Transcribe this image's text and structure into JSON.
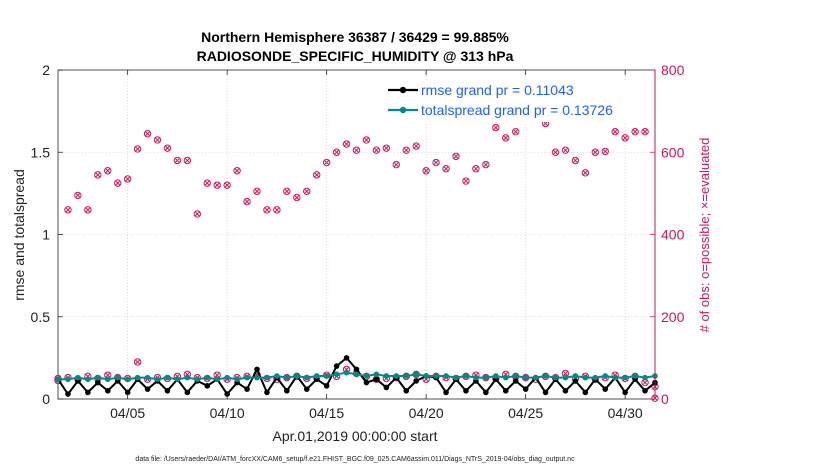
{
  "chart_data": {
    "type": "line",
    "title_line1": "Northern Hemisphere 36387 / 36429 = 99.885%",
    "title_line2": "RADIOSONDE_SPECIFIC_HUMIDITY @ 313 hPa",
    "xlabel": "Apr.01,2019 00:00:00 start",
    "ylabel_left": "rmse and totalspread",
    "ylabel_right": "# of obs: o=possible; ×=evaluated",
    "footnote": "data file: /Users/raeder/DAI/ATM_forcXX/CAM6_setup/f.e21.FHIST_BGC.f09_025.CAM6assim.011/Diags_NTrS_2019-04/obs_diag_output.nc",
    "xlim": [
      0.5,
      30.5
    ],
    "x_ticks": [
      4,
      9,
      14,
      19,
      24,
      29
    ],
    "x_tick_labels": [
      "04/05",
      "04/10",
      "04/15",
      "04/20",
      "04/25",
      "04/30"
    ],
    "ylim_left": [
      0,
      2
    ],
    "y_ticks_left": [
      0,
      0.5,
      1,
      1.5,
      2
    ],
    "y_tick_labels_left": [
      "0",
      "0.5",
      "1",
      "1.5",
      "2"
    ],
    "ylim_right": [
      0,
      800
    ],
    "y_ticks_right": [
      0,
      200,
      400,
      600,
      800
    ],
    "y_tick_labels_right": [
      "0",
      "200",
      "400",
      "600",
      "800"
    ],
    "legend": [
      {
        "label": "rmse grand pr = 0.11043",
        "color": "#000000"
      },
      {
        "label": "totalspread grand pr = 0.13726",
        "color": "#008b8b"
      }
    ],
    "legend_position": "top-right",
    "obs_counts": {
      "name": "# of obs",
      "color": "#d4145a",
      "x": [
        0.5,
        1.0,
        1.5,
        2.0,
        2.5,
        3.0,
        3.5,
        4.0,
        4.5,
        5.0,
        5.5,
        6.0,
        6.5,
        7.0,
        7.5,
        8.0,
        8.5,
        9.0,
        9.5,
        10.0,
        10.5,
        11.0,
        11.5,
        12.0,
        12.5,
        13.0,
        13.5,
        14.0,
        14.5,
        15.0,
        15.5,
        16.0,
        16.5,
        17.0,
        17.5,
        18.0,
        18.5,
        19.0,
        19.5,
        20.0,
        20.5,
        21.0,
        21.5,
        22.0,
        22.5,
        23.0,
        23.5,
        24.0,
        24.5,
        25.0,
        25.5,
        26.0,
        26.5,
        27.0,
        27.5,
        28.0,
        28.5,
        29.0,
        29.5,
        30.0,
        30.5
      ],
      "possible": [
        45,
        460,
        495,
        460,
        545,
        555,
        525,
        535,
        608,
        645,
        630,
        610,
        580,
        580,
        450,
        525,
        520,
        520,
        555,
        480,
        505,
        460,
        460,
        505,
        490,
        505,
        545,
        575,
        600,
        620,
        605,
        630,
        605,
        610,
        570,
        605,
        615,
        555,
        575,
        560,
        590,
        530,
        560,
        570,
        660,
        635,
        650,
        730,
        685,
        670,
        600,
        605,
        580,
        550,
        600,
        602,
        650,
        635,
        650,
        650,
        30
      ],
      "evaluated": [
        45,
        460,
        495,
        460,
        545,
        555,
        525,
        535,
        608,
        645,
        630,
        610,
        580,
        580,
        450,
        525,
        520,
        520,
        555,
        480,
        505,
        460,
        460,
        505,
        490,
        505,
        545,
        575,
        600,
        620,
        605,
        630,
        605,
        610,
        570,
        605,
        615,
        555,
        575,
        560,
        590,
        530,
        560,
        570,
        660,
        635,
        650,
        730,
        685,
        670,
        600,
        605,
        580,
        550,
        600,
        602,
        650,
        635,
        650,
        650,
        30
      ],
      "low_row_possible": [
        50,
        52,
        48,
        55,
        50,
        58,
        52,
        50,
        90,
        48,
        52,
        50,
        55,
        60,
        52,
        50,
        58,
        48,
        52,
        55,
        60,
        50,
        48,
        52,
        55,
        50,
        52,
        58,
        55,
        72,
        62,
        55,
        48,
        50,
        52,
        55,
        60,
        48,
        55,
        52,
        50,
        55,
        58,
        52,
        50,
        60,
        55,
        52,
        48,
        55,
        52,
        62,
        50,
        55,
        48,
        52,
        58,
        50,
        55,
        40,
        2
      ]
    },
    "series": [
      {
        "name": "rmse",
        "color": "#000000",
        "x": [
          0.5,
          1.0,
          1.5,
          2.0,
          2.5,
          3.0,
          3.5,
          4.0,
          4.5,
          5.0,
          5.5,
          6.0,
          6.5,
          7.0,
          7.5,
          8.0,
          8.5,
          9.0,
          9.5,
          10.0,
          10.5,
          11.0,
          11.5,
          12.0,
          12.5,
          13.0,
          13.5,
          14.0,
          14.5,
          15.0,
          15.5,
          16.0,
          16.5,
          17.0,
          17.5,
          18.0,
          18.5,
          19.0,
          19.5,
          20.0,
          20.5,
          21.0,
          21.5,
          22.0,
          22.5,
          23.0,
          23.5,
          24.0,
          24.5,
          25.0,
          25.5,
          26.0,
          26.5,
          27.0,
          27.5,
          28.0,
          28.5,
          29.0,
          29.5,
          30.0,
          30.5
        ],
        "values": [
          0.12,
          0.03,
          0.11,
          0.04,
          0.1,
          0.05,
          0.11,
          0.04,
          0.12,
          0.06,
          0.11,
          0.05,
          0.12,
          0.04,
          0.11,
          0.08,
          0.12,
          0.03,
          0.1,
          0.06,
          0.18,
          0.04,
          0.13,
          0.05,
          0.14,
          0.06,
          0.12,
          0.08,
          0.2,
          0.25,
          0.18,
          0.1,
          0.12,
          0.07,
          0.13,
          0.05,
          0.11,
          0.14,
          0.13,
          0.04,
          0.12,
          0.05,
          0.11,
          0.04,
          0.12,
          0.05,
          0.11,
          0.06,
          0.13,
          0.04,
          0.12,
          0.05,
          0.11,
          0.04,
          0.12,
          0.06,
          0.13,
          0.04,
          0.12,
          0.05,
          0.1
        ]
      },
      {
        "name": "totalspread",
        "color": "#008b8b",
        "x": [
          0.5,
          1.0,
          1.5,
          2.0,
          2.5,
          3.0,
          3.5,
          4.0,
          4.5,
          5.0,
          5.5,
          6.0,
          6.5,
          7.0,
          7.5,
          8.0,
          8.5,
          9.0,
          9.5,
          10.0,
          10.5,
          11.0,
          11.5,
          12.0,
          12.5,
          13.0,
          13.5,
          14.0,
          14.5,
          15.0,
          15.5,
          16.0,
          16.5,
          17.0,
          17.5,
          18.0,
          18.5,
          19.0,
          19.5,
          20.0,
          20.5,
          21.0,
          21.5,
          22.0,
          22.5,
          23.0,
          23.5,
          24.0,
          24.5,
          25.0,
          25.5,
          26.0,
          26.5,
          27.0,
          27.5,
          28.0,
          28.5,
          29.0,
          29.5,
          30.0,
          30.5
        ],
        "values": [
          0.12,
          0.12,
          0.13,
          0.12,
          0.13,
          0.12,
          0.13,
          0.12,
          0.13,
          0.13,
          0.12,
          0.13,
          0.12,
          0.13,
          0.12,
          0.13,
          0.12,
          0.13,
          0.12,
          0.13,
          0.13,
          0.13,
          0.14,
          0.13,
          0.14,
          0.13,
          0.14,
          0.14,
          0.15,
          0.16,
          0.15,
          0.14,
          0.15,
          0.14,
          0.14,
          0.14,
          0.15,
          0.14,
          0.14,
          0.14,
          0.13,
          0.14,
          0.13,
          0.13,
          0.14,
          0.13,
          0.14,
          0.13,
          0.13,
          0.14,
          0.13,
          0.13,
          0.14,
          0.13,
          0.13,
          0.14,
          0.13,
          0.13,
          0.14,
          0.13,
          0.14
        ]
      }
    ]
  }
}
